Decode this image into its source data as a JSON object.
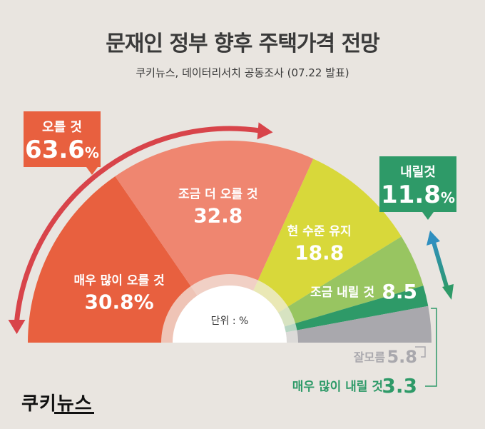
{
  "title": "문재인 정부 향후 주택가격 전망",
  "subtitle": "쿠키뉴스, 데이터리서치 공동조사 (07.22 발표)",
  "unit_label": "단위 : %",
  "logo": "쿠키뉴스",
  "callouts": {
    "rise": {
      "label": "오를 것",
      "value": "63.6",
      "pct": "%",
      "color": "#e8603f"
    },
    "fall": {
      "label": "내릴것",
      "value": "11.8",
      "pct": "%",
      "color": "#2e9a68"
    }
  },
  "chart_data": {
    "type": "pie",
    "subtype": "semi-donut",
    "unit": "%",
    "title": "문재인 정부 향후 주택가격 전망",
    "categories": [
      "매우 많이 오를 것",
      "조금 더 오를 것",
      "현 수준 유지",
      "조금 내릴 것",
      "매우 많이 내릴 것",
      "잘모름"
    ],
    "values": [
      30.8,
      32.8,
      18.8,
      8.5,
      3.3,
      5.8
    ],
    "colors": [
      "#e8603f",
      "#ef8670",
      "#d8d83a",
      "#98c561",
      "#2e9a68",
      "#a9a8ad"
    ],
    "value_labels": [
      "30.8%",
      "32.8",
      "18.8",
      "8.5",
      "3.3",
      "5.8"
    ],
    "groups": [
      {
        "name": "오를 것",
        "value": 63.6
      },
      {
        "name": "내릴것",
        "value": 11.8
      }
    ]
  }
}
